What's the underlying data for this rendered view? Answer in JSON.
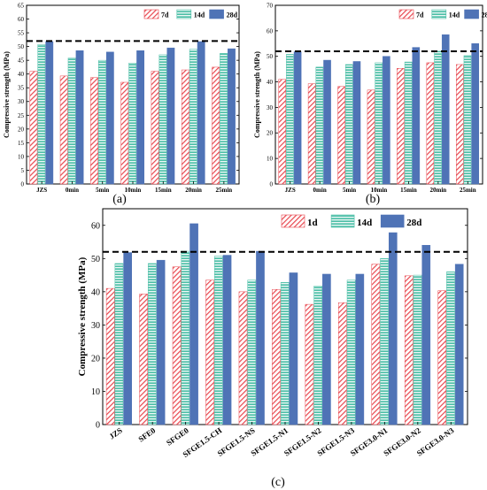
{
  "colors": {
    "early": "#e8474f",
    "mid": "#4dbfa7",
    "late": "#4f73b6",
    "reference_line": "#000000"
  },
  "chart_data": [
    {
      "id": "a",
      "panel_label": "(a)",
      "type": "bar",
      "ylabel": "Compressive strength (MPa)",
      "xlabel": "",
      "ylim": [
        0,
        65
      ],
      "yticks": [
        0,
        5,
        10,
        15,
        20,
        25,
        30,
        35,
        40,
        45,
        50,
        55,
        60,
        65
      ],
      "categories": [
        "JZS",
        "0min",
        "5min",
        "10min",
        "15min",
        "20min",
        "25min"
      ],
      "series": [
        {
          "name": "7d",
          "pattern": "hatch-diag",
          "values": [
            41.0,
            39.3,
            38.7,
            37.0,
            41.0,
            41.5,
            42.5
          ]
        },
        {
          "name": "14d",
          "pattern": "hatch-horiz",
          "values": [
            50.7,
            45.8,
            45.0,
            44.0,
            47.0,
            49.0,
            47.5
          ]
        },
        {
          "name": "28d",
          "pattern": "solid",
          "values": [
            51.8,
            48.5,
            48.0,
            48.5,
            49.5,
            51.8,
            49.2
          ]
        }
      ],
      "reference_line": 52.0,
      "legend_position": "top-right"
    },
    {
      "id": "b",
      "panel_label": "(b)",
      "type": "bar",
      "ylabel": "Compressive strength (MPa)",
      "xlabel": "",
      "ylim": [
        0,
        70
      ],
      "yticks": [
        0,
        10,
        20,
        30,
        40,
        50,
        60,
        70
      ],
      "categories": [
        "JZS",
        "0min",
        "5min",
        "10min",
        "15min",
        "20min",
        "25min"
      ],
      "series": [
        {
          "name": "7d",
          "pattern": "hatch-diag",
          "values": [
            41.0,
            39.3,
            38.2,
            36.8,
            45.3,
            47.5,
            46.8
          ]
        },
        {
          "name": "14d",
          "pattern": "hatch-horiz",
          "values": [
            50.8,
            45.8,
            46.8,
            47.5,
            47.8,
            52.0,
            50.3
          ]
        },
        {
          "name": "28d",
          "pattern": "solid",
          "values": [
            51.8,
            48.5,
            48.0,
            50.0,
            53.5,
            58.5,
            55.0
          ]
        }
      ],
      "reference_line": 52.0,
      "legend_position": "top-right"
    },
    {
      "id": "c",
      "panel_label": "(c)",
      "type": "bar",
      "ylabel": "Compressive strength (MPa)",
      "xlabel": "",
      "ylim": [
        0,
        65
      ],
      "yticks": [
        0,
        10,
        20,
        30,
        40,
        50,
        60
      ],
      "categories": [
        "JZS",
        "SFE0",
        "SFGE0",
        "SFGE1.5-CH",
        "SFGE1.5-NS",
        "SFGE1.5-N1",
        "SFGE1.5-N2",
        "SFGE1.5-N3",
        "SFGE3.0-N1",
        "SFGE3.0-N2",
        "SFGE3.0-N3"
      ],
      "series": [
        {
          "name": "1d",
          "pattern": "hatch-diag",
          "values": [
            41.0,
            39.3,
            47.5,
            43.5,
            40.0,
            40.7,
            36.2,
            36.7,
            48.3,
            44.8,
            40.3
          ]
        },
        {
          "name": "14d",
          "pattern": "hatch-horiz",
          "values": [
            48.5,
            48.5,
            52.2,
            50.7,
            43.5,
            42.8,
            41.7,
            43.5,
            50.0,
            45.0,
            46.0
          ]
        },
        {
          "name": "28d",
          "pattern": "solid",
          "values": [
            51.8,
            49.5,
            60.5,
            51.0,
            52.2,
            45.7,
            45.3,
            45.3,
            57.8,
            54.0,
            48.3
          ]
        }
      ],
      "reference_line": 52.0,
      "legend_position": "top-right"
    }
  ]
}
